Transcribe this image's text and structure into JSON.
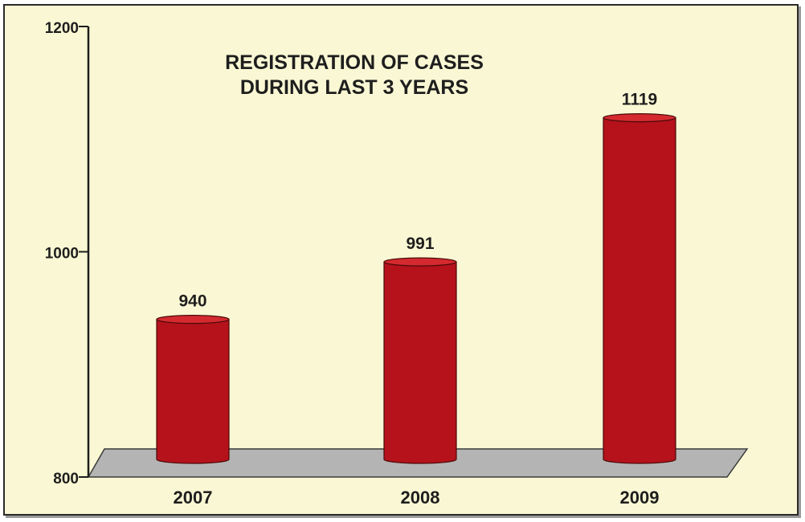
{
  "chart_data": {
    "type": "bar",
    "title_lines": [
      "REGISTRATION OF CASES",
      "DURING LAST 3 YEARS"
    ],
    "categories": [
      "2007",
      "2008",
      "2009"
    ],
    "values": [
      940,
      991,
      1119
    ],
    "value_labels": [
      "940",
      "991",
      "1119"
    ],
    "xlabel": "",
    "ylabel": "",
    "ylim": [
      800,
      1200
    ],
    "yticks": [
      800,
      1000,
      1200
    ],
    "ytick_labels": [
      "800",
      "1000",
      "1200"
    ],
    "grid": false,
    "legend": "none",
    "bar_style": "3d-cylinder",
    "colors": {
      "background": "#faf8d4",
      "bar": "#b5121b",
      "bar_top": "#d42a2f",
      "bar_outline": "#4a0a0a",
      "floor": "#b4b4b4",
      "axis": "#1e1e1e"
    }
  }
}
